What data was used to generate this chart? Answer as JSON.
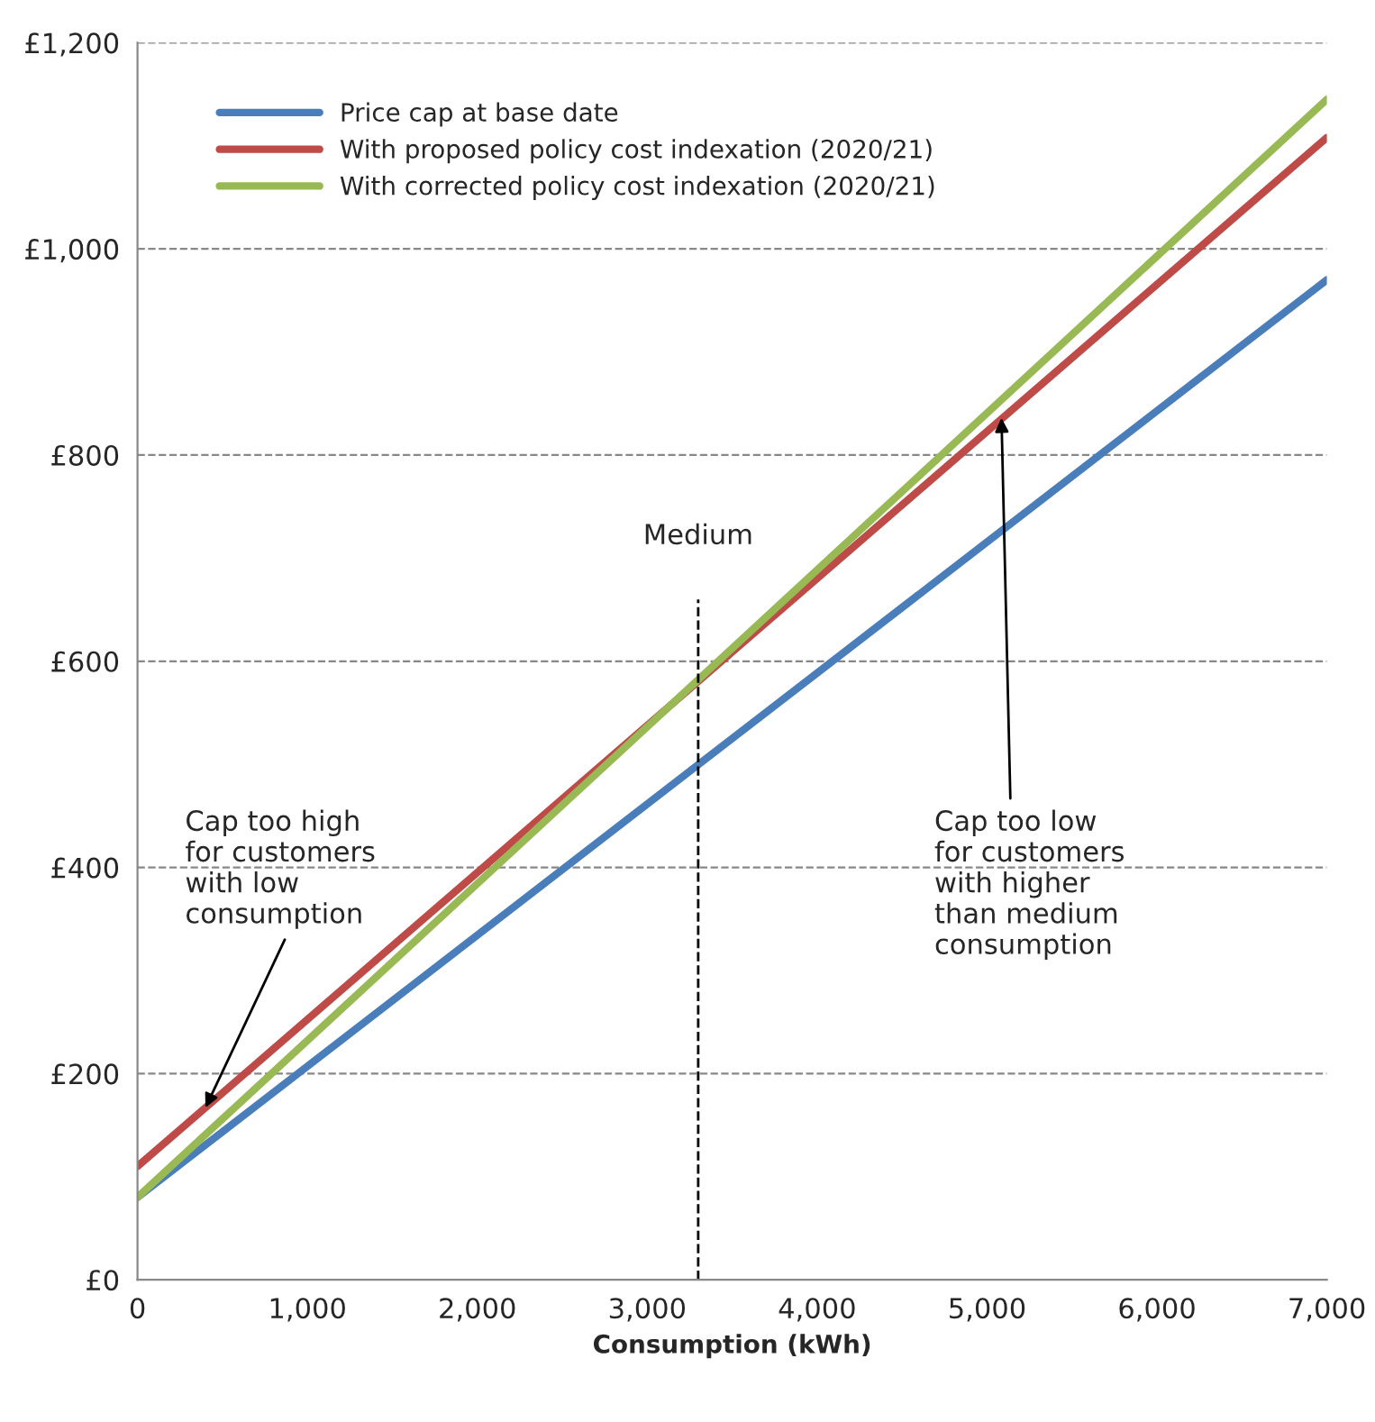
{
  "chart_data": {
    "type": "line",
    "xlabel": "Consumption (kWh)",
    "x": [
      0,
      7000
    ],
    "series": [
      {
        "name": "Price cap at base date",
        "color": "#4a7ebb",
        "values": [
          80,
          970
        ]
      },
      {
        "name": "With proposed policy cost indexation (2020/21)",
        "color": "#be4b48",
        "values": [
          110,
          1108
        ]
      },
      {
        "name": "With corrected policy cost indexation (2020/21)",
        "color": "#98b954",
        "values": [
          80,
          1145
        ]
      }
    ],
    "xlim": [
      0,
      7000
    ],
    "xticks": [
      0,
      {
        "value": 1000,
        "label": "1,000"
      },
      {
        "value": 2000,
        "label": "2,000"
      },
      {
        "value": 3000,
        "label": "3,000"
      },
      {
        "value": 4000,
        "label": "4,000"
      },
      {
        "value": 5000,
        "label": "5,000"
      },
      {
        "value": 6000,
        "label": "6,000"
      },
      {
        "value": 7000,
        "label": "7,000"
      }
    ],
    "ylim": [
      0,
      1200
    ],
    "yticks": [
      {
        "value": 0,
        "label": "£0"
      },
      {
        "value": 200,
        "label": "£200"
      },
      {
        "value": 400,
        "label": "£400"
      },
      {
        "value": 600,
        "label": "£600"
      },
      {
        "value": 800,
        "label": "£800"
      },
      {
        "value": 1000,
        "label": "£1,000"
      },
      {
        "value": 1200,
        "label": "£1,200"
      }
    ],
    "grid": "y",
    "legend": "top left",
    "line_style": "solid",
    "ref_lines": [
      {
        "axis": "x",
        "value": 3300,
        "label": "Medium",
        "color": "#000000",
        "line_style": "dashed"
      }
    ],
    "annotations": [
      {
        "text": "Cap too high\nfor customers\nwith low\nconsumption",
        "x": 400,
        "y": 167
      },
      {
        "text": "Cap too low\nfor customers\nwith higher\nthan medium\nconsumption",
        "x": 5085,
        "y": 836
      }
    ]
  }
}
